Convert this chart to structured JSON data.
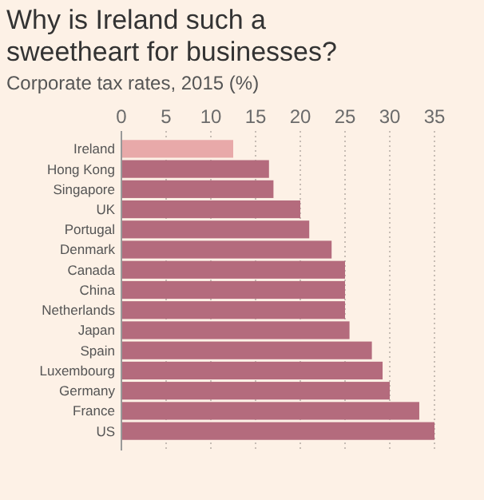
{
  "chart_data": {
    "type": "bar",
    "orientation": "horizontal",
    "title": "Why is Ireland such a sweetheart for businesses?",
    "subtitle": "Corporate tax rates, 2015 (%)",
    "categories": [
      "Ireland",
      "Hong Kong",
      "Singapore",
      "UK",
      "Portugal",
      "Denmark",
      "Canada",
      "China",
      "Netherlands",
      "Japan",
      "Spain",
      "Luxembourg",
      "Germany",
      "France",
      "US"
    ],
    "values": [
      12.5,
      16.5,
      17,
      20,
      21,
      23.5,
      25,
      25,
      25,
      25.5,
      28,
      29.2,
      30,
      33.3,
      35
    ],
    "colors": [
      "#e8a9a9",
      "#b46b7d",
      "#b46b7d",
      "#b46b7d",
      "#b46b7d",
      "#b46b7d",
      "#b46b7d",
      "#b46b7d",
      "#b46b7d",
      "#b46b7d",
      "#b46b7d",
      "#b46b7d",
      "#b46b7d",
      "#b46b7d",
      "#b46b7d"
    ],
    "xlim": [
      0,
      35
    ],
    "xticks": [
      0,
      5,
      10,
      15,
      20,
      25,
      30,
      35
    ],
    "grid": "x"
  }
}
